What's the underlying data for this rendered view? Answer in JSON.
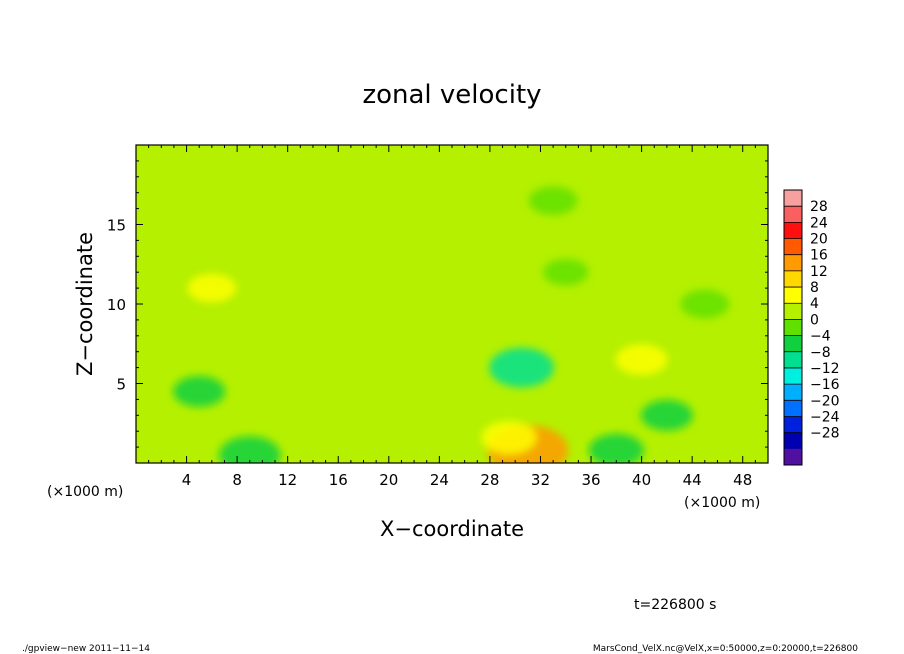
{
  "chart_data": {
    "type": "heatmap",
    "title": "zonal velocity",
    "xlabel": "X−coordinate",
    "ylabel": "Z−coordinate",
    "x_unit_label": "(×1000 m)",
    "x_unit_label_right": "(×1000 m)",
    "x_ticks": [
      "4",
      "8",
      "12",
      "16",
      "20",
      "24",
      "28",
      "32",
      "36",
      "40",
      "44",
      "48"
    ],
    "x_tick_values": [
      4,
      8,
      12,
      16,
      20,
      24,
      28,
      32,
      36,
      40,
      44,
      48
    ],
    "y_ticks": [
      "5",
      "10",
      "15"
    ],
    "y_tick_values": [
      5,
      10,
      15
    ],
    "xlim": [
      0,
      50
    ],
    "ylim": [
      0,
      20
    ],
    "colorbar": {
      "labels": [
        "28",
        "24",
        "20",
        "16",
        "12",
        "8",
        "4",
        "0",
        "−4",
        "−8",
        "−12",
        "−16",
        "−20",
        "−24",
        "−28"
      ],
      "values": [
        28,
        24,
        20,
        16,
        12,
        8,
        4,
        0,
        -4,
        -8,
        -12,
        -16,
        -20,
        -24,
        -28
      ],
      "colors": [
        "#f6a0a0",
        "#fb6060",
        "#ff1010",
        "#ff5a00",
        "#ff9a00",
        "#ffd800",
        "#ffff00",
        "#b4f000",
        "#60e000",
        "#10d040",
        "#00e090",
        "#00f0e0",
        "#00b0ff",
        "#0070ff",
        "#0020e0",
        "#0000b0",
        "#5010a0"
      ]
    },
    "field_features": [
      {
        "x": 31,
        "z": 0.8,
        "value": 14
      },
      {
        "x": 29.5,
        "z": 1.6,
        "value": 6
      },
      {
        "x": 30.5,
        "z": 6,
        "value": -9
      },
      {
        "x": 9,
        "z": 0.5,
        "value": -8
      },
      {
        "x": 5,
        "z": 4.5,
        "value": -5
      },
      {
        "x": 40,
        "z": 6.5,
        "value": 5
      },
      {
        "x": 6,
        "z": 11,
        "value": 4
      },
      {
        "x": 20,
        "z": 6,
        "value": 3
      },
      {
        "x": 38,
        "z": 0.8,
        "value": -6
      },
      {
        "x": 45,
        "z": 10,
        "value": -4
      },
      {
        "x": 34,
        "z": 12,
        "value": -3
      },
      {
        "x": 42,
        "z": 3,
        "value": -5
      },
      {
        "x": 15,
        "z": 2.5,
        "value": 3
      },
      {
        "x": 33,
        "z": 16.5,
        "value": -4
      }
    ],
    "background_value": 0.5,
    "legend_position": "right",
    "grid": false
  },
  "time_label": "t=226800 s",
  "footer": {
    "left": "./gpview−new  2011−11−14",
    "right": "MarsCond_VelX.nc@VelX,x=0:50000,z=0:20000,t=226800"
  }
}
